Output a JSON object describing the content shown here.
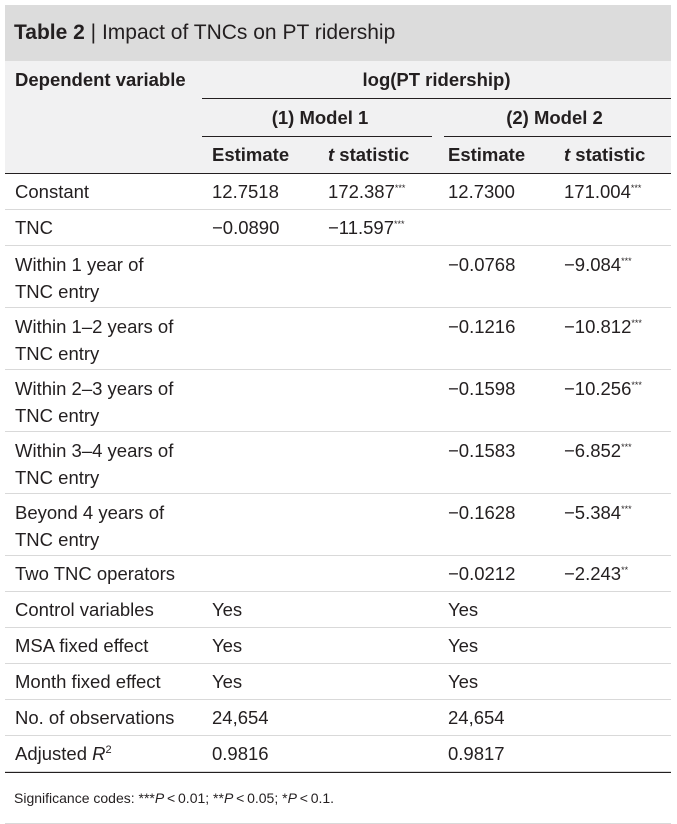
{
  "title": {
    "label": "Table 2",
    "separator": " | ",
    "text": "Impact of TNCs on PT ridership"
  },
  "header": {
    "dependent_variable": "Dependent variable",
    "dependent_value": "log(PT ridership)",
    "model1": "(1) Model 1",
    "model2": "(2) Model 2",
    "estimate": "Estimate",
    "t_italic": "t",
    "t_rest": " statistic"
  },
  "rows": [
    {
      "label": "Constant",
      "m1_est": "12.7518",
      "m1_t": "172.387",
      "m1_sig": "***",
      "m2_est": "12.7300",
      "m2_t": "171.004",
      "m2_sig": "***"
    },
    {
      "label": "TNC",
      "m1_est": "−0.0890",
      "m1_t": "−11.597",
      "m1_sig": "***",
      "m2_est": "",
      "m2_t": "",
      "m2_sig": ""
    },
    {
      "label": "Within 1 year of TNC entry",
      "m1_est": "",
      "m1_t": "",
      "m1_sig": "",
      "m2_est": "−0.0768",
      "m2_t": "−9.084",
      "m2_sig": "***"
    },
    {
      "label": "Within 1–2 years of TNC entry",
      "m1_est": "",
      "m1_t": "",
      "m1_sig": "",
      "m2_est": "−0.1216",
      "m2_t": "−10.812",
      "m2_sig": "***"
    },
    {
      "label": "Within 2–3 years of TNC entry",
      "m1_est": "",
      "m1_t": "",
      "m1_sig": "",
      "m2_est": "−0.1598",
      "m2_t": "−10.256",
      "m2_sig": "***"
    },
    {
      "label": "Within 3–4 years of TNC entry",
      "m1_est": "",
      "m1_t": "",
      "m1_sig": "",
      "m2_est": "−0.1583",
      "m2_t": "−6.852",
      "m2_sig": "***"
    },
    {
      "label": "Beyond 4 years of TNC entry",
      "m1_est": "",
      "m1_t": "",
      "m1_sig": "",
      "m2_est": "−0.1628",
      "m2_t": "−5.384",
      "m2_sig": "***"
    },
    {
      "label": "Two TNC operators",
      "m1_est": "",
      "m1_t": "",
      "m1_sig": "",
      "m2_est": "−0.0212",
      "m2_t": "−2.243",
      "m2_sig": "**"
    },
    {
      "label": "Control variables",
      "m1_est": "Yes",
      "m1_t": "",
      "m1_sig": "",
      "m2_est": "Yes",
      "m2_t": "",
      "m2_sig": ""
    },
    {
      "label": "MSA fixed effect",
      "m1_est": "Yes",
      "m1_t": "",
      "m1_sig": "",
      "m2_est": "Yes",
      "m2_t": "",
      "m2_sig": ""
    },
    {
      "label": "Month fixed effect",
      "m1_est": "Yes",
      "m1_t": "",
      "m1_sig": "",
      "m2_est": "Yes",
      "m2_t": "",
      "m2_sig": ""
    },
    {
      "label": "No. of observations",
      "m1_est": "24,654",
      "m1_t": "",
      "m1_sig": "",
      "m2_est": "24,654",
      "m2_t": "",
      "m2_sig": ""
    }
  ],
  "adjusted": {
    "label_text": "Adjusted ",
    "label_italic": "R",
    "label_sup": "2",
    "m1_est": "0.9816",
    "m2_est": "0.9817"
  },
  "footer": {
    "prefix": "Significance codes: ",
    "c1_stars": "***",
    "c1_p": "P",
    "c1_rest": " < 0.01; ",
    "c2_stars": "**",
    "c2_p": "P",
    "c2_rest": " < 0.05; ",
    "c3_stars": "*",
    "c3_p": "P",
    "c3_rest": " < 0.1."
  }
}
